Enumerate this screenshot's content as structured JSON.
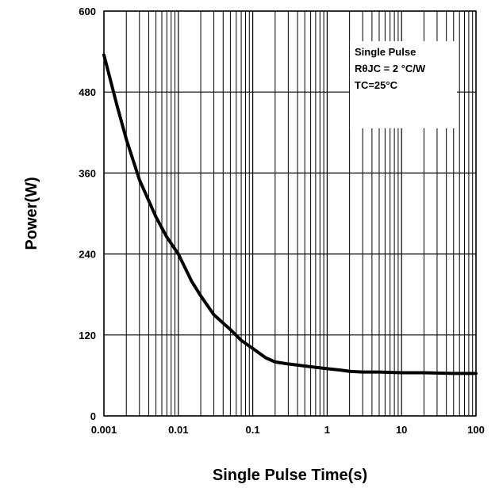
{
  "chart_data": {
    "type": "line",
    "title": "",
    "xlabel": "Single Pulse Time(s)",
    "ylabel": "Power(W)",
    "x_scale": "log",
    "xlim": [
      0.001,
      100
    ],
    "ylim": [
      0,
      600
    ],
    "grid": true,
    "x_ticks": [
      "0.001",
      "0.01",
      "0.1",
      "1",
      "10",
      "100"
    ],
    "y_ticks": [
      "0",
      "120",
      "240",
      "360",
      "480",
      "600"
    ],
    "annotation": {
      "lines": [
        "Single Pulse",
        "RθJC = 2 °C/W",
        "TC=25°C"
      ],
      "placement": "top-right"
    },
    "series": [
      {
        "x": [
          0.001,
          0.0015,
          0.002,
          0.003,
          0.005,
          0.007,
          0.01,
          0.015,
          0.02,
          0.03,
          0.05,
          0.07,
          0.1,
          0.15,
          0.2,
          0.3,
          0.5,
          0.7,
          1,
          1.5,
          2,
          3,
          5,
          10,
          20,
          50,
          100
        ],
        "y": [
          535,
          460,
          410,
          350,
          295,
          265,
          240,
          200,
          178,
          150,
          128,
          112,
          100,
          86,
          80,
          77,
          74,
          72,
          70,
          68,
          66,
          65,
          65,
          64,
          64,
          63,
          63
        ],
        "color": "#000000"
      }
    ]
  }
}
